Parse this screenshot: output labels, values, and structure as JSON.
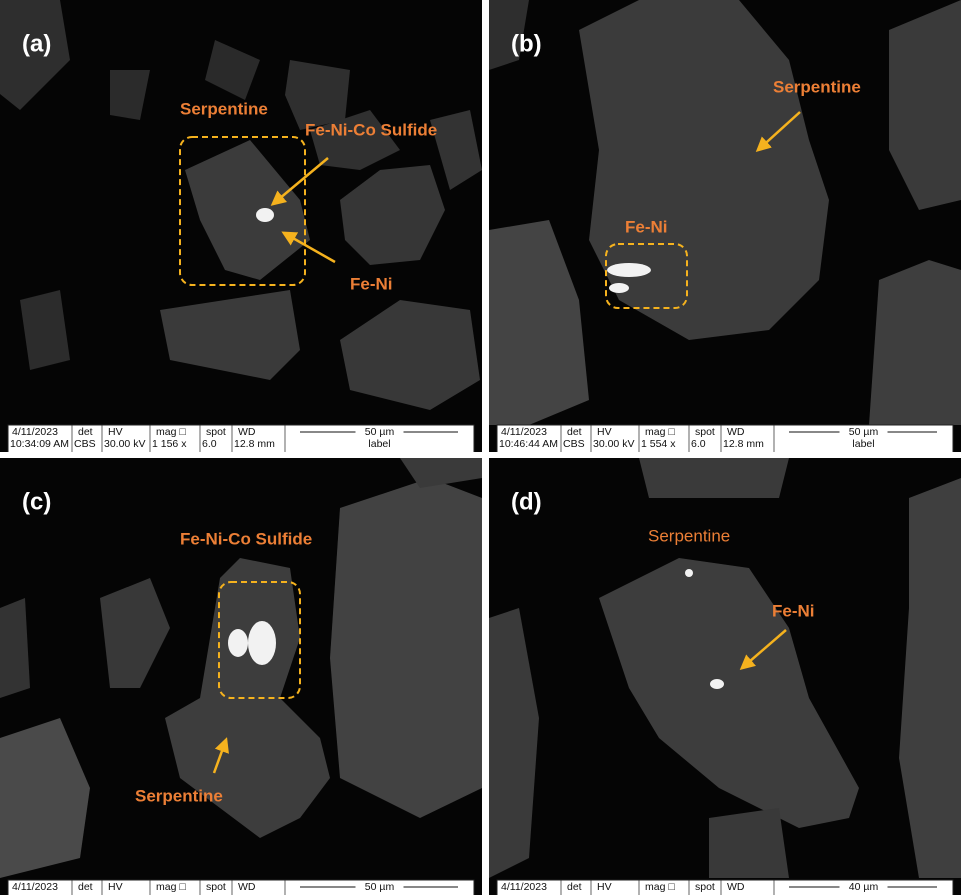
{
  "panels": [
    {
      "label": "(a)",
      "annotations": [
        "Serpentine",
        "Fe-Ni-Co Sulfide",
        "Fe-Ni"
      ],
      "info": {
        "header": [
          "4/11/2023",
          "det",
          "HV",
          "mag □",
          "spot",
          "WD"
        ],
        "values": [
          "10:34:09 AM",
          "CBS",
          "30.00 kV",
          "1 156 x",
          "6.0",
          "12.8 mm"
        ],
        "scale": "50 µm",
        "scale_label": "label"
      }
    },
    {
      "label": "(b)",
      "annotations": [
        "Serpentine",
        "Fe-Ni"
      ],
      "info": {
        "header": [
          "4/11/2023",
          "det",
          "HV",
          "mag □",
          "spot",
          "WD"
        ],
        "values": [
          "10:46:44 AM",
          "CBS",
          "30.00 kV",
          "1 554 x",
          "6.0",
          "12.8 mm"
        ],
        "scale": "50 µm",
        "scale_label": "label"
      }
    },
    {
      "label": "(c)",
      "annotations": [
        "Fe-Ni-Co Sulfide",
        "Serpentine"
      ],
      "info": {
        "header": [
          "4/11/2023",
          "det",
          "HV",
          "mag □",
          "spot",
          "WD"
        ],
        "scale": "50 µm"
      }
    },
    {
      "label": "(d)",
      "annotations": [
        "Serpentine",
        "Fe-Ni"
      ],
      "info": {
        "header": [
          "4/11/2023",
          "det",
          "HV",
          "mag □",
          "spot",
          "WD"
        ],
        "scale": "40 µm"
      }
    }
  ]
}
